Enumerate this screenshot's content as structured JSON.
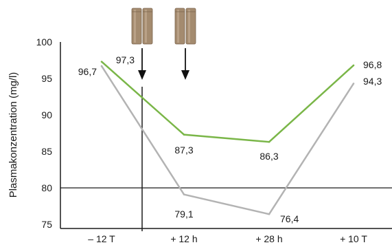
{
  "chart_data": {
    "type": "line",
    "ylabel": "Plasmakonzentration (mg/l)",
    "xlabel": "",
    "title": "",
    "categories": [
      "– 12 T",
      "+ 12 h",
      "+ 28 h",
      "+ 10 T"
    ],
    "ylim": [
      75,
      100
    ],
    "yticks": [
      75,
      80,
      85,
      90,
      95,
      100
    ],
    "grid": false,
    "series": [
      {
        "color": "#7ab648",
        "values": [
          97.3,
          87.3,
          86.3,
          96.8
        ],
        "labels": [
          "97,3",
          "87,3",
          "86,3",
          "96,8"
        ]
      },
      {
        "color": "#b3b3b3",
        "values": [
          96.7,
          79.1,
          76.4,
          94.3
        ],
        "labels": [
          "96,7",
          "79,1",
          "76,4",
          "94,3"
        ]
      }
    ],
    "reference_line": {
      "y": 80,
      "color": "#1a1a1a"
    },
    "events": [
      {
        "icon": "tablets-icon",
        "type": "arrow-down"
      },
      {
        "icon": "tablets-icon",
        "type": "arrow-down"
      }
    ],
    "vertical_marker": {
      "color": "#1a1a1a"
    }
  }
}
